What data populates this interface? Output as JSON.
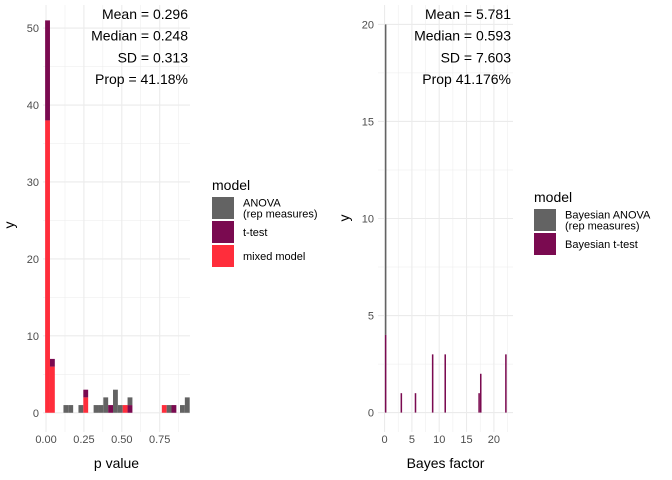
{
  "colors": {
    "ANOVA": "#636363",
    "t-test": "#7a0a50",
    "mixed": "#ff2d3b",
    "grid": "#ebebeb"
  },
  "chart_data": [
    {
      "type": "bar",
      "subtype": "stacked-histogram",
      "xlabel": "p value",
      "ylabel": "y",
      "xlim": [
        -0.02,
        0.95
      ],
      "ylim": [
        -2.5,
        53
      ],
      "xticks": [
        "0.00",
        "0.25",
        "0.50",
        "0.75"
      ],
      "xtick_values": [
        0,
        0.25,
        0.5,
        0.75
      ],
      "yticks": [
        "0",
        "10",
        "20",
        "30",
        "40",
        "50"
      ],
      "ytick_values": [
        0,
        10,
        20,
        30,
        40,
        50
      ],
      "bin_width": 0.032,
      "grid": true,
      "stats": [
        "Mean  =  0.296",
        "Median  =  0.248",
        "SD  =  0.313",
        "Prop = 41.18%"
      ],
      "legend": {
        "title": "model",
        "position": "right",
        "entries": [
          {
            "key": "ANOVA",
            "label_lines": [
              " ANOVA",
              "(rep measures)"
            ]
          },
          {
            "key": "t-test",
            "label_lines": [
              "t-test"
            ]
          },
          {
            "key": "mixed",
            "label_lines": [
              "mixed model"
            ]
          }
        ]
      },
      "bins": [
        {
          "x": 0.01,
          "mixed": 38,
          "t-test": 13,
          "ANOVA": 0
        },
        {
          "x": 0.042,
          "mixed": 6,
          "t-test": 1,
          "ANOVA": 0
        },
        {
          "x": 0.131,
          "mixed": 0,
          "t-test": 0,
          "ANOVA": 1
        },
        {
          "x": 0.163,
          "mixed": 0,
          "t-test": 0,
          "ANOVA": 1
        },
        {
          "x": 0.23,
          "mixed": 0,
          "t-test": 0,
          "ANOVA": 1
        },
        {
          "x": 0.262,
          "mixed": 2,
          "t-test": 1,
          "ANOVA": 0
        },
        {
          "x": 0.33,
          "mixed": 0,
          "t-test": 0,
          "ANOVA": 1
        },
        {
          "x": 0.362,
          "mixed": 0,
          "t-test": 0,
          "ANOVA": 1
        },
        {
          "x": 0.394,
          "mixed": 0,
          "t-test": 0,
          "ANOVA": 2
        },
        {
          "x": 0.426,
          "mixed": 0,
          "t-test": 1,
          "ANOVA": 0
        },
        {
          "x": 0.458,
          "mixed": 0,
          "t-test": 0,
          "ANOVA": 3
        },
        {
          "x": 0.49,
          "mixed": 0,
          "t-test": 0,
          "ANOVA": 1
        },
        {
          "x": 0.522,
          "mixed": 1,
          "t-test": 0,
          "ANOVA": 0
        },
        {
          "x": 0.554,
          "mixed": 0,
          "t-test": 1,
          "ANOVA": 1
        },
        {
          "x": 0.78,
          "mixed": 1,
          "t-test": 0,
          "ANOVA": 0
        },
        {
          "x": 0.812,
          "mixed": 0,
          "t-test": 0,
          "ANOVA": 1
        },
        {
          "x": 0.844,
          "mixed": 0,
          "t-test": 1,
          "ANOVA": 0
        },
        {
          "x": 0.9,
          "mixed": 0,
          "t-test": 0,
          "ANOVA": 1
        },
        {
          "x": 0.932,
          "mixed": 0,
          "t-test": 0,
          "ANOVA": 2
        }
      ]
    },
    {
      "type": "bar",
      "subtype": "stacked-histogram",
      "xlabel": "Bayes factor",
      "ylabel": "y",
      "xlim": [
        -1.2,
        23.5
      ],
      "ylim": [
        -1,
        21
      ],
      "xticks": [
        "0",
        "5",
        "10",
        "15",
        "20"
      ],
      "xtick_values": [
        0,
        5,
        10,
        15,
        20
      ],
      "yticks": [
        "0",
        "5",
        "10",
        "15",
        "20"
      ],
      "ytick_values": [
        0,
        5,
        10,
        15,
        20
      ],
      "bin_width": 0.28,
      "grid": true,
      "stats": [
        "Mean  =  5.781",
        "Median  =  0.593",
        "SD  =  7.603",
        "Prop 41.176%"
      ],
      "legend": {
        "title": "model",
        "position": "right",
        "entries": [
          {
            "key": "ANOVA",
            "label_lines": [
              "Bayesian ANOVA",
              "(rep measures)"
            ]
          },
          {
            "key": "t-test",
            "label_lines": [
              "Bayesian t-test"
            ]
          }
        ]
      },
      "bins": [
        {
          "x": 0.2,
          "t-test": 4,
          "ANOVA": 16
        },
        {
          "x": 3.07,
          "t-test": 1,
          "ANOVA": 0
        },
        {
          "x": 5.66,
          "t-test": 1,
          "ANOVA": 0
        },
        {
          "x": 8.8,
          "t-test": 3,
          "ANOVA": 0
        },
        {
          "x": 11.1,
          "t-test": 3,
          "ANOVA": 0
        },
        {
          "x": 17.3,
          "t-test": 1,
          "ANOVA": 0
        },
        {
          "x": 17.6,
          "t-test": 2,
          "ANOVA": 0
        },
        {
          "x": 22.2,
          "t-test": 3,
          "ANOVA": 0
        }
      ]
    }
  ]
}
